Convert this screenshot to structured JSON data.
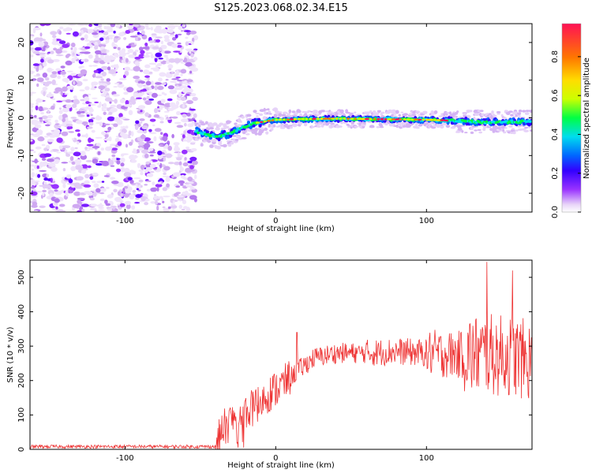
{
  "figure_title": "S125.2023.068.02.34.E15",
  "chart_data": [
    {
      "type": "heatmap",
      "title": "",
      "xlabel": "Height of straight line (km)",
      "ylabel": "Frequency (Hz)",
      "xlim": [
        -163,
        170
      ],
      "ylim": [
        -25,
        25
      ],
      "xticks": [
        -100,
        0,
        100
      ],
      "xtick_labels": [
        "-100",
        "0",
        "100"
      ],
      "yticks": [
        -20,
        -10,
        0,
        10,
        20
      ],
      "ytick_labels": [
        "-20",
        "-10",
        "0",
        "10",
        "20"
      ],
      "noise_region_end_km": -53,
      "signal_ridge": {
        "x": [
          -53,
          -45,
          -38,
          -30,
          -22,
          -15,
          -8,
          0,
          20,
          40,
          60,
          80,
          100,
          120,
          140,
          160,
          170
        ],
        "frequency": [
          -3.5,
          -4.5,
          -5,
          -4,
          -2.5,
          -1.5,
          -1,
          -0.5,
          -0.3,
          -0.2,
          -0.3,
          -0.4,
          -0.5,
          -0.8,
          -1.2,
          -1.0,
          -1.0
        ]
      },
      "colorbar": {
        "label": "Normalized spectral amplitude",
        "range": [
          0,
          0.97
        ],
        "ticks": [
          0.0,
          0.2,
          0.4,
          0.6,
          0.8
        ],
        "tick_labels": [
          "0.0",
          "0.2",
          "0.4",
          "0.6",
          "0.8"
        ],
        "colormap": [
          "#ffffff",
          "#e8d4f8",
          "#9933ff",
          "#3300ff",
          "#0066ff",
          "#00ddee",
          "#00ff44",
          "#ccff00",
          "#ffdd00",
          "#ff7700",
          "#ff1155"
        ]
      },
      "grid": false
    },
    {
      "type": "line",
      "title": "",
      "xlabel": "Height of straight line (km)",
      "ylabel": "SNR (10 * v/v)",
      "xlim": [
        -163,
        170
      ],
      "ylim": [
        0,
        550
      ],
      "xticks": [
        -100,
        0,
        100
      ],
      "xtick_labels": [
        "-100",
        "0",
        "100"
      ],
      "yticks": [
        0,
        100,
        200,
        300,
        400,
        500
      ],
      "ytick_labels": [
        "0",
        "100",
        "200",
        "300",
        "400",
        "500"
      ],
      "series_color": "#ee3333",
      "trend": {
        "x": [
          -163,
          -40,
          -35,
          -25,
          -15,
          -5,
          5,
          15,
          25,
          40,
          60,
          80,
          100,
          120,
          140,
          160,
          170
        ],
        "y": [
          8,
          8,
          60,
          100,
          120,
          160,
          190,
          230,
          265,
          280,
          280,
          285,
          280,
          275,
          275,
          270,
          250
        ]
      },
      "peaks": [
        {
          "x": 14,
          "y": 340
        },
        {
          "x": 140,
          "y": 545
        },
        {
          "x": 157,
          "y": 520
        }
      ],
      "grid": false
    }
  ]
}
